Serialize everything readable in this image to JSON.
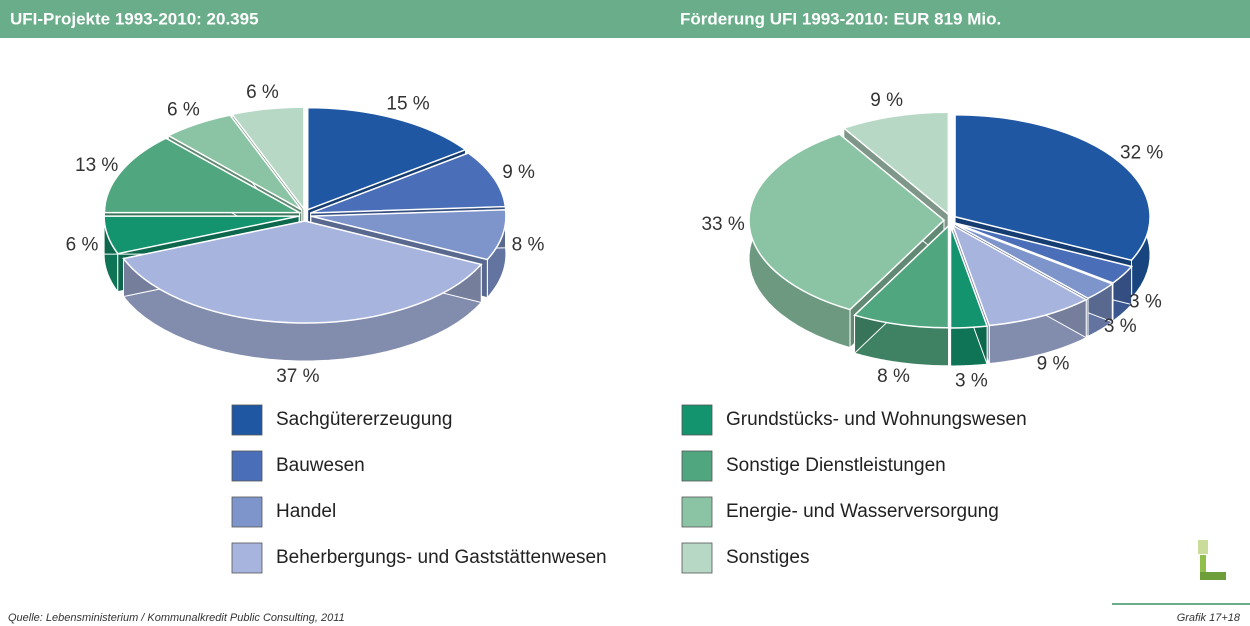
{
  "chart_data": [
    {
      "type": "pie",
      "title": "UFI-Projekte 1993-2010: 20.395",
      "categories": [
        "Sachgütererzeugung",
        "Bauwesen",
        "Handel",
        "Beherbergungs- und Gaststättenwesen",
        "Grundstücks- und Wohnungswesen",
        "Sonstige Dienstleistungen",
        "Energie- und Wasserversorgung",
        "Sonstiges"
      ],
      "values": [
        15,
        9,
        8,
        37,
        6,
        13,
        6,
        6
      ],
      "value_labels": [
        "15 %",
        "9 %",
        "8 %",
        "37 %",
        "6 %",
        "13 %",
        "6 %",
        "6 %"
      ],
      "colors": [
        "#1f57a3",
        "#4a6fb8",
        "#7e95cc",
        "#a7b4de",
        "#13936e",
        "#4fa67f",
        "#8bc4a4",
        "#b6d8c4"
      ]
    },
    {
      "type": "pie",
      "title": "Förderung UFI 1993-2010: EUR 819 Mio.",
      "categories": [
        "Sachgütererzeugung",
        "Bauwesen",
        "Handel",
        "Beherbergungs- und Gaststättenwesen",
        "Grundstücks- und Wohnungswesen",
        "Sonstige Dienstleistungen",
        "Energie- und Wasserversorgung",
        "Sonstiges"
      ],
      "values": [
        32,
        3,
        3,
        9,
        3,
        8,
        33,
        9
      ],
      "value_labels": [
        "32 %",
        "3 %",
        "3 %",
        "9 %",
        "3 %",
        "8 %",
        "33 %",
        "9 %"
      ],
      "colors": [
        "#1f57a3",
        "#4a6fb8",
        "#7e95cc",
        "#a7b4de",
        "#13936e",
        "#4fa67f",
        "#8bc4a4",
        "#b6d8c4"
      ]
    }
  ],
  "source": "Quelle: Lebensministerium / Kommunalkredit Public Consulting, 2011",
  "figure": "Grafik 17+18"
}
